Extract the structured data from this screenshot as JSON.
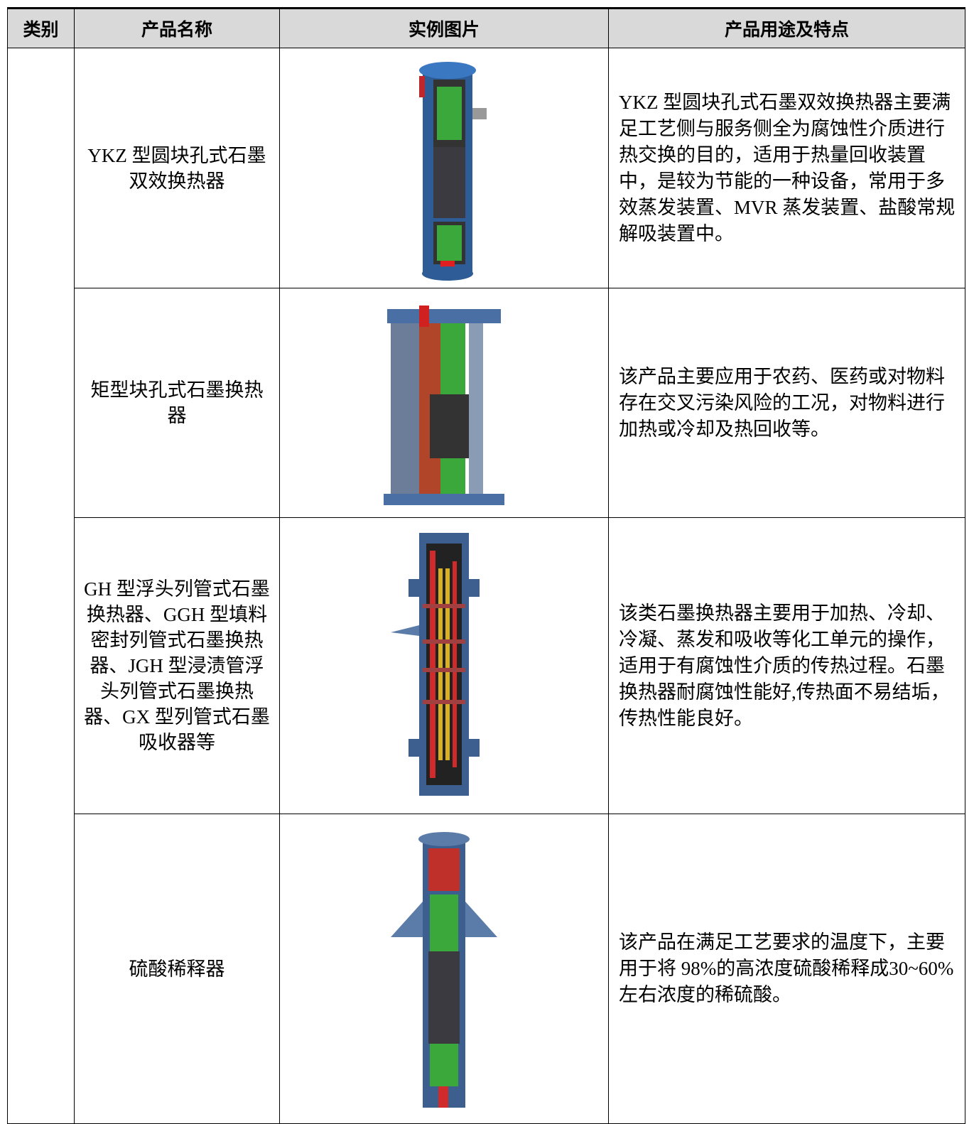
{
  "table": {
    "header": [
      "类别",
      "产品名称",
      "实例图片",
      "产品用途及特点"
    ],
    "rows": [
      {
        "name": "YKZ 型圆块孔式石墨双效换热器",
        "description": "YKZ 型圆块孔式石墨双效换热器主要满足工艺侧与服务侧全为腐蚀性介质进行热交换的目的，适用于热量回收装置中，是较为节能的一种设备，常用于多效蒸发装置、MVR 蒸发装置、盐酸常规解吸装置中。"
      },
      {
        "name": "矩型块孔式石墨换热器",
        "description": "该产品主要应用于农药、医药或对物料存在交叉污染风险的工况，对物料进行加热或冷却及热回收等。"
      },
      {
        "name": "GH 型浮头列管式石墨换热器、GGH 型填料密封列管式石墨换热器、JGH 型浸渍管浮头列管式石墨换热器、GX 型列管式石墨吸收器等",
        "description": "该类石墨换热器主要用于加热、冷却、冷凝、蒸发和吸收等化工单元的操作，适用于有腐蚀性介质的传热过程。石墨换热器耐腐蚀性能好,传热面不易结垢，传热性能良好。"
      },
      {
        "name": "硫酸稀释器",
        "description": "该产品在满足工艺要求的温度下，主要用于将 98%的高浓度硫酸稀释成30~60%左右浓度的稀硫酸。"
      }
    ]
  }
}
